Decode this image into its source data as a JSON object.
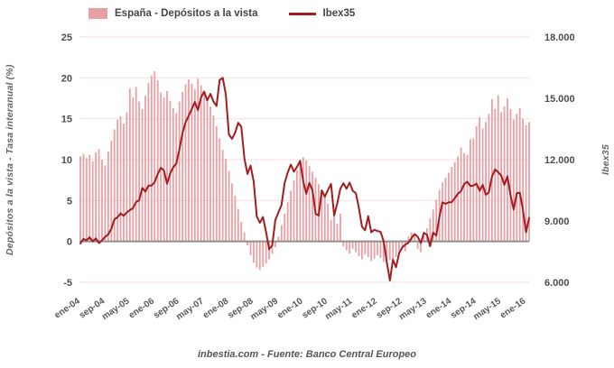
{
  "legend": {
    "bars_label": "España - Depósitos a la vista",
    "line_label": "Ibex35"
  },
  "left_axis": {
    "title": "Depósitos a la vista - Tasa interanual (%)",
    "ticks": [
      "25",
      "20",
      "15",
      "10",
      "5",
      "0",
      "-5"
    ],
    "min": -5,
    "max": 25
  },
  "right_axis": {
    "title": "Ibex35",
    "ticks": [
      "18.000",
      "15.000",
      "12.000",
      "9.000",
      "6.000"
    ],
    "min": 6000,
    "max": 18000,
    "tick_step": 3000
  },
  "x_axis": {
    "labels": [
      "ene-04",
      "sep-04",
      "may-05",
      "ene-06",
      "sep-06",
      "may-07",
      "ene-08",
      "sep-08",
      "may-09",
      "ene-10",
      "sep-10",
      "may-11",
      "ene-12",
      "sep-12",
      "may-13",
      "ene-14",
      "sep-14",
      "may-15",
      "ene-16"
    ],
    "label_month_step": 8
  },
  "footer": {
    "credit": "inbestia.com - Fuente: Banco Central Europeo"
  },
  "colors": {
    "bar": "#e8a0a5",
    "line": "#a21c20",
    "grid": "#f7dee0",
    "zero_line": "#8f8f8f",
    "tick_text": "#4d4d4d",
    "x_text": "#595959"
  },
  "chart_data": {
    "type": "bar",
    "subtype": "bar+line dual axis",
    "title": "",
    "frequency": "monthly",
    "x_start": "ene-04",
    "x_end": "feb-16",
    "left_ylim": [
      -5,
      25
    ],
    "right_ylim": [
      6000,
      18000
    ],
    "grid": "horizontal only",
    "legend_position": "top",
    "series": [
      {
        "name": "España - Depósitos a la vista",
        "type": "bar",
        "axis": "left",
        "unit": "%",
        "values": [
          10.4,
          10.7,
          10.2,
          10.6,
          9.8,
          10.9,
          11.3,
          10.0,
          9.3,
          11.0,
          12.3,
          13.7,
          14.9,
          15.3,
          14.4,
          15.8,
          18.7,
          17.6,
          18.9,
          17.1,
          16.2,
          17.8,
          19.4,
          20.3,
          20.8,
          19.7,
          18.2,
          17.6,
          18.4,
          17.2,
          16.3,
          15.7,
          17.1,
          18.3,
          19.2,
          19.8,
          19.3,
          18.6,
          19.9,
          19.1,
          18.2,
          17.4,
          16.5,
          15.4,
          14.1,
          12.6,
          11.2,
          10.1,
          8.6,
          7.1,
          5.6,
          4.0,
          2.4,
          1.1,
          -0.5,
          -1.7,
          -2.6,
          -3.2,
          -3.5,
          -3.1,
          -2.7,
          -2.2,
          -1.5,
          -0.7,
          0.6,
          2.0,
          3.4,
          4.8,
          6.2,
          7.5,
          8.7,
          9.6,
          10.3,
          9.9,
          9.2,
          8.5,
          7.8,
          7.0,
          6.2,
          5.4,
          4.6,
          2.6,
          3.4,
          2.2,
          3.4,
          -0.6,
          -1.1,
          -1.5,
          -0.9,
          -1.3,
          -1.8,
          -2.2,
          -1.6,
          -1.9,
          -2.4,
          -2.1,
          -1.7,
          -2.0,
          -2.5,
          -2.8,
          -2.3,
          -2.6,
          -1.9,
          -1.4,
          -0.8,
          -1.2,
          0.6,
          1.1,
          0.8,
          -0.9,
          -1.3,
          0.7,
          1.6,
          2.8,
          3.9,
          5.1,
          6.3,
          7.2,
          7.8,
          8.4,
          9.1,
          9.7,
          10.4,
          11.5,
          10.8,
          10.6,
          12.5,
          12.6,
          14.1,
          15.2,
          13.8,
          14.6,
          15.6,
          17.4,
          16.2,
          17.9,
          15.8,
          16.5,
          17.5,
          16.2,
          14.9,
          15.6,
          16.3,
          15.0,
          14.2,
          14.6
        ]
      },
      {
        "name": "Ibex35",
        "type": "line",
        "axis": "right",
        "values": [
          7900,
          8120,
          8060,
          8200,
          8000,
          8150,
          7920,
          8060,
          8220,
          8340,
          8620,
          9080,
          9180,
          9370,
          9250,
          9420,
          9530,
          9630,
          9920,
          10020,
          10620,
          10440,
          10730,
          10734,
          10900,
          11300,
          11600,
          11480,
          10820,
          11310,
          11620,
          11810,
          12510,
          13300,
          13820,
          14147,
          14480,
          14820,
          14420,
          15050,
          15330,
          14900,
          15220,
          14840,
          14630,
          15890,
          16000,
          15182,
          13230,
          13020,
          13320,
          13800,
          13620,
          12050,
          11300,
          11710,
          10950,
          9220,
          8910,
          9195,
          8450,
          7620,
          7815,
          9038,
          9424,
          9787,
          10855,
          11365,
          11756,
          11414,
          11644,
          11940,
          10948,
          10333,
          10871,
          10492,
          9359,
          9263,
          10499,
          10187,
          10514,
          10812,
          9267,
          9859,
          10571,
          10850,
          10576,
          10879,
          10476,
          10359,
          9630,
          8718,
          8546,
          9233,
          8449,
          8566,
          8509,
          8465,
          8008,
          7011,
          6090,
          7102,
          6738,
          7420,
          7708,
          7842,
          7934,
          8168,
          8362,
          8230,
          7920,
          8419,
          8320,
          7763,
          8433,
          8290,
          9186,
          9907,
          9838,
          9916,
          9920,
          10114,
          10340,
          10459,
          10798,
          10924,
          10707,
          10728,
          10825,
          10477,
          10770,
          10280,
          10403,
          11178,
          11521,
          11385,
          11217,
          10770,
          11180,
          10259,
          9560,
          10360,
          10386,
          9544,
          8450,
          9150
        ]
      }
    ]
  }
}
